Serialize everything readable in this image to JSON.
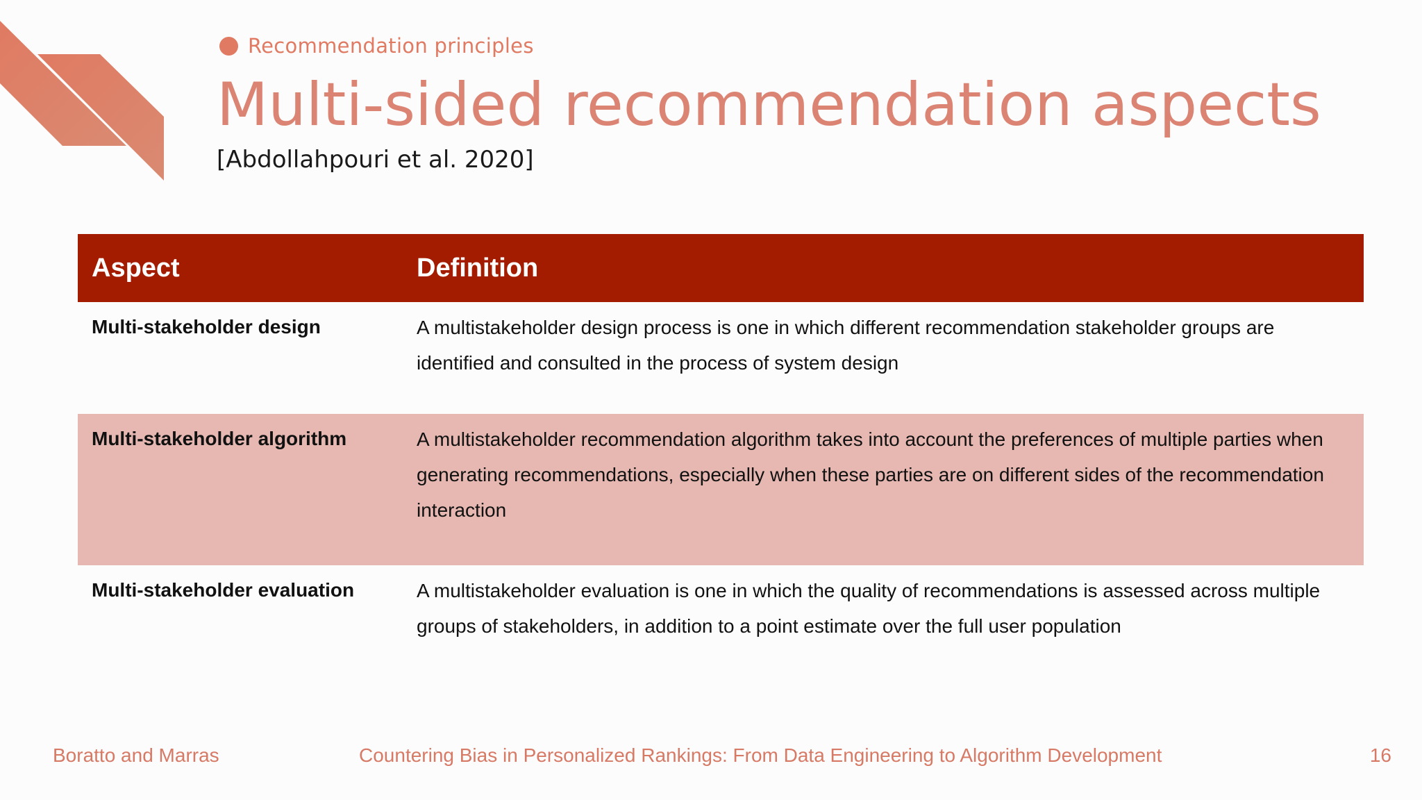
{
  "section": {
    "label": "Recommendation principles"
  },
  "title": "Multi-sided recommendation aspects",
  "citation": "[Abdollahpouri et al. 2020]",
  "table": {
    "headers": [
      "Aspect",
      "Definition"
    ],
    "rows": [
      {
        "aspect": "Multi-stakeholder design",
        "definition": "A multistakeholder design process is one in which different recommendation stakeholder groups are identified and consulted in the process of system design"
      },
      {
        "aspect": "Multi-stakeholder algorithm",
        "definition": "A multistakeholder recommendation algorithm takes into account the preferences of multiple parties when generating recommendations, especially when these parties are on different sides of the recommendation interaction"
      },
      {
        "aspect": "Multi-stakeholder evaluation",
        "definition": "A multistakeholder evaluation is one in which the quality of recommendations is assessed across multiple groups of stakeholders, in addition to a point estimate over the full user population"
      }
    ]
  },
  "footer": {
    "authors": "Boratto and Marras",
    "talk_title": "Countering Bias in Personalized Rankings: From Data Engineering to Algorithm Development",
    "page_number": "16"
  },
  "colors": {
    "accent": "#e07a62",
    "title": "#db8473",
    "header_bg": "#a41c00",
    "highlight_row": "#e6b8b1"
  }
}
